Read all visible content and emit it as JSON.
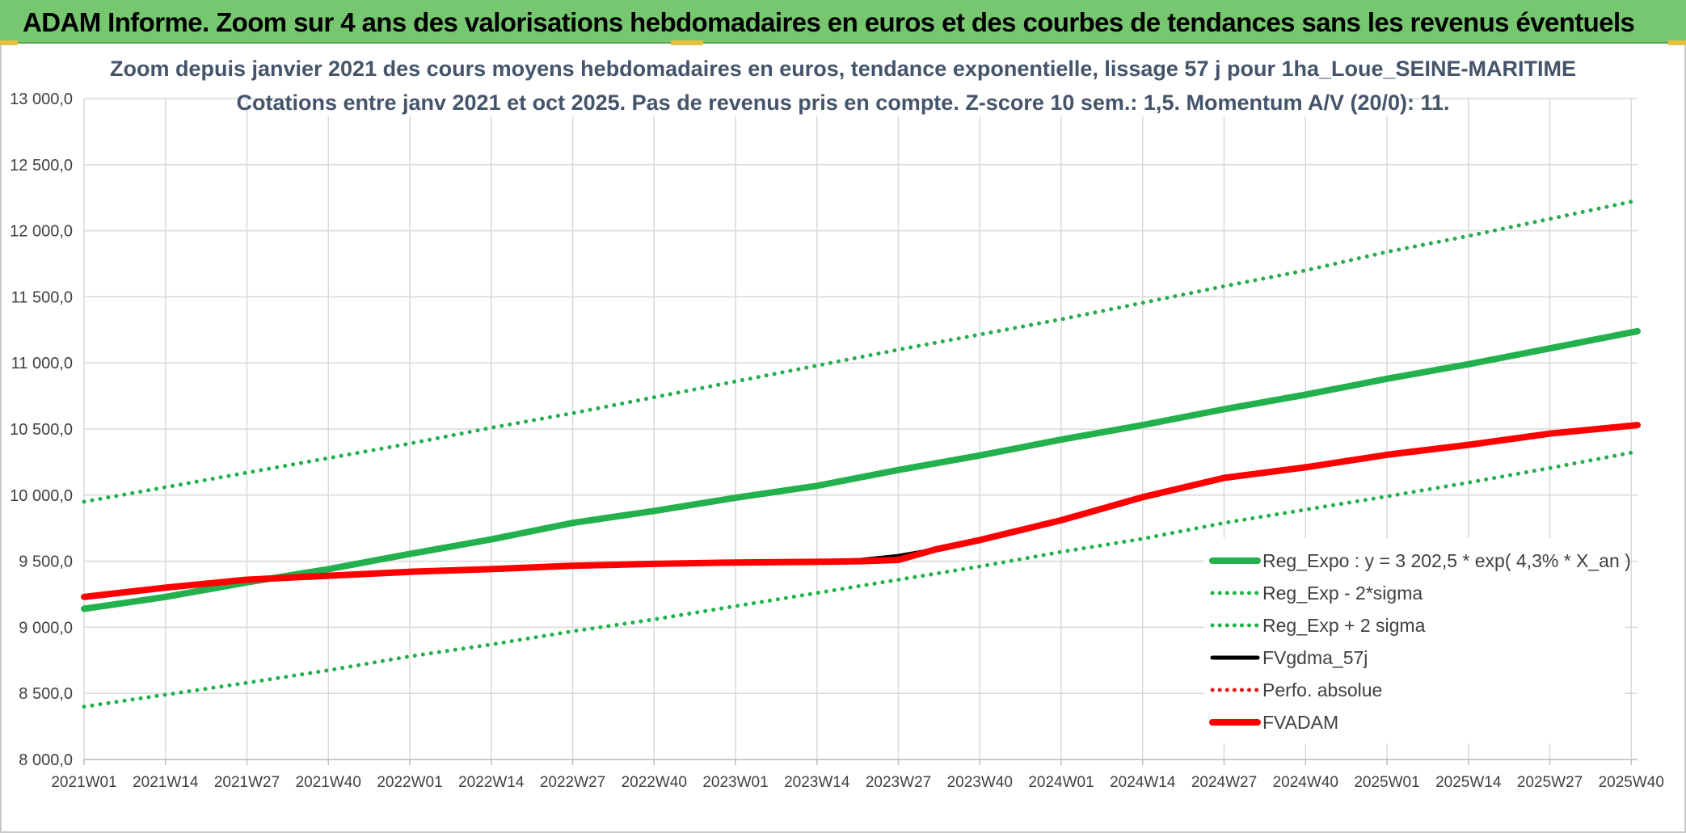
{
  "header": {
    "title": "ADAM Informe. Zoom sur 4 ans des valorisations hebdomadaires en euros et des courbes de tendances sans les revenus éventuels"
  },
  "chart_data": {
    "type": "line",
    "title_line1": "Zoom depuis janvier 2021 des cours moyens hebdomadaires en euros, tendance exponentielle, lissage 57 j pour 1ha_Loue_SEINE-MARITIME",
    "title_line2": "Cotations entre janv 2021 et oct 2025. Pas de revenus pris en compte. Z-score 10 sem.: 1,5. Momentum A/V (20/0): 11.",
    "xlabel": "",
    "ylabel": "",
    "ylim": [
      8000,
      13000
    ],
    "y_ticks": [
      13000,
      12500,
      12000,
      11500,
      11000,
      10500,
      10000,
      9500,
      9000,
      8500,
      8000
    ],
    "y_tick_labels": [
      "13 000,0",
      "12 500,0",
      "12 000,0",
      "11 500,0",
      "11 000,0",
      "10 500,0",
      "10 000,0",
      "9 500,0",
      "9 000,0",
      "8 500,0",
      "8 000,0"
    ],
    "x_range": [
      0,
      248
    ],
    "x_ticks": [
      0,
      13,
      26,
      39,
      52,
      65,
      78,
      91,
      104,
      117,
      130,
      143,
      156,
      169,
      182,
      195,
      208,
      221,
      234,
      247
    ],
    "x_tick_labels": [
      "2021W01",
      "2021W14",
      "2021W27",
      "2021W40",
      "2022W01",
      "2022W14",
      "2022W27",
      "2022W40",
      "2023W01",
      "2023W14",
      "2023W27",
      "2023W40",
      "2024W01",
      "2024W14",
      "2024W27",
      "2024W40",
      "2025W01",
      "2025W14",
      "2025W27",
      "2025W40"
    ],
    "grid": true,
    "legend_position": "bottom-right",
    "series": [
      {
        "name": "Reg_Expo : y = 3 202,5 * exp( 4,3% *  X_an )",
        "color": "#22b14c",
        "style": "solid",
        "width": 8,
        "points": [
          [
            0,
            9140
          ],
          [
            13,
            9230
          ],
          [
            26,
            9340
          ],
          [
            39,
            9440
          ],
          [
            52,
            9555
          ],
          [
            65,
            9665
          ],
          [
            78,
            9790
          ],
          [
            91,
            9880
          ],
          [
            104,
            9980
          ],
          [
            117,
            10070
          ],
          [
            130,
            10190
          ],
          [
            143,
            10300
          ],
          [
            156,
            10420
          ],
          [
            169,
            10530
          ],
          [
            182,
            10650
          ],
          [
            195,
            10760
          ],
          [
            208,
            10880
          ],
          [
            221,
            10990
          ],
          [
            234,
            11110
          ],
          [
            248,
            11240
          ]
        ]
      },
      {
        "name": "Reg_Exp - 2*sigma",
        "color": "#22b14c",
        "style": "dotted",
        "width": 5,
        "points": [
          [
            0,
            8400
          ],
          [
            13,
            8490
          ],
          [
            26,
            8580
          ],
          [
            39,
            8675
          ],
          [
            52,
            8780
          ],
          [
            65,
            8870
          ],
          [
            78,
            8970
          ],
          [
            91,
            9060
          ],
          [
            104,
            9160
          ],
          [
            117,
            9260
          ],
          [
            130,
            9360
          ],
          [
            143,
            9460
          ],
          [
            156,
            9570
          ],
          [
            169,
            9670
          ],
          [
            182,
            9790
          ],
          [
            195,
            9890
          ],
          [
            208,
            9990
          ],
          [
            221,
            10095
          ],
          [
            234,
            10205
          ],
          [
            248,
            10330
          ]
        ]
      },
      {
        "name": "Reg_Exp + 2 sigma",
        "color": "#22b14c",
        "style": "dotted",
        "width": 5,
        "points": [
          [
            0,
            9950
          ],
          [
            13,
            10060
          ],
          [
            26,
            10170
          ],
          [
            39,
            10280
          ],
          [
            52,
            10390
          ],
          [
            65,
            10510
          ],
          [
            78,
            10620
          ],
          [
            91,
            10740
          ],
          [
            104,
            10860
          ],
          [
            117,
            10980
          ],
          [
            130,
            11100
          ],
          [
            143,
            11215
          ],
          [
            156,
            11330
          ],
          [
            169,
            11455
          ],
          [
            182,
            11580
          ],
          [
            195,
            11700
          ],
          [
            208,
            11840
          ],
          [
            221,
            11960
          ],
          [
            234,
            12090
          ],
          [
            248,
            12230
          ]
        ]
      },
      {
        "name": "FVgdma_57j",
        "color": "#000000",
        "style": "solid",
        "width": 5,
        "points": [
          [
            0,
            9230
          ],
          [
            13,
            9300
          ],
          [
            26,
            9360
          ],
          [
            39,
            9390
          ],
          [
            52,
            9420
          ],
          [
            65,
            9440
          ],
          [
            78,
            9465
          ],
          [
            91,
            9480
          ],
          [
            104,
            9490
          ],
          [
            117,
            9495
          ],
          [
            124,
            9510
          ],
          [
            130,
            9540
          ],
          [
            136,
            9590
          ],
          [
            143,
            9660
          ],
          [
            156,
            9810
          ],
          [
            169,
            9985
          ],
          [
            182,
            10130
          ],
          [
            195,
            10210
          ],
          [
            208,
            10305
          ],
          [
            221,
            10380
          ],
          [
            234,
            10465
          ],
          [
            248,
            10525
          ]
        ]
      },
      {
        "name": "Perfo. absolue",
        "color": "#e31a1c",
        "style": "dotted",
        "width": 5,
        "points": []
      },
      {
        "name": "FVADAM",
        "color": "#ff0000",
        "style": "solid",
        "width": 8,
        "points": [
          [
            0,
            9230
          ],
          [
            13,
            9300
          ],
          [
            26,
            9360
          ],
          [
            39,
            9390
          ],
          [
            52,
            9420
          ],
          [
            65,
            9440
          ],
          [
            78,
            9465
          ],
          [
            91,
            9480
          ],
          [
            104,
            9490
          ],
          [
            117,
            9495
          ],
          [
            124,
            9500
          ],
          [
            130,
            9510
          ],
          [
            136,
            9590
          ],
          [
            143,
            9660
          ],
          [
            156,
            9810
          ],
          [
            169,
            9985
          ],
          [
            182,
            10130
          ],
          [
            195,
            10210
          ],
          [
            208,
            10305
          ],
          [
            221,
            10380
          ],
          [
            234,
            10465
          ],
          [
            248,
            10530
          ]
        ]
      }
    ]
  }
}
